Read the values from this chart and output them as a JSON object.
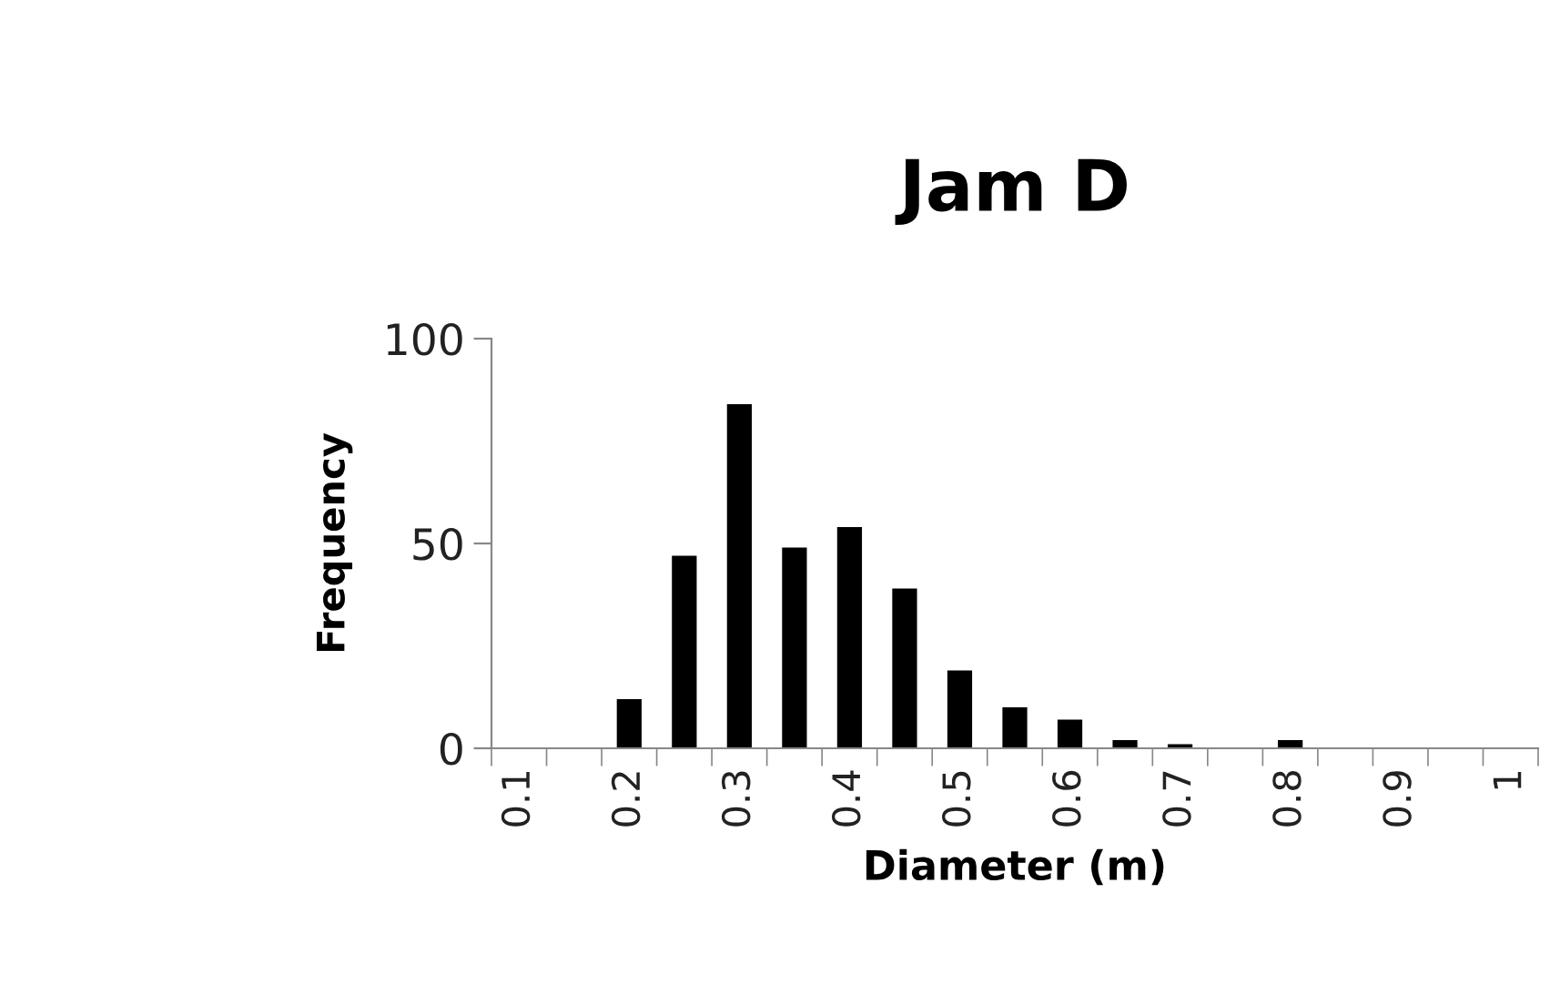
{
  "chart_data": {
    "type": "bar",
    "title": "Jam D",
    "xlabel": "Diameter (m)",
    "ylabel": "Frequency",
    "categories": [
      "0.1",
      null,
      "0.2",
      null,
      "0.3",
      null,
      "0.4",
      null,
      "0.5",
      null,
      "0.6",
      null,
      "0.7",
      null,
      "0.8",
      null,
      "0.9",
      null,
      "1"
    ],
    "values": [
      0,
      0,
      12,
      47,
      84,
      49,
      54,
      39,
      19,
      10,
      7,
      2,
      1,
      0,
      2,
      0,
      0,
      0,
      0
    ],
    "color": "#000000",
    "ylim": [
      0,
      100
    ],
    "yticks": [
      0,
      50,
      100
    ],
    "grid": false,
    "legend": false
  }
}
